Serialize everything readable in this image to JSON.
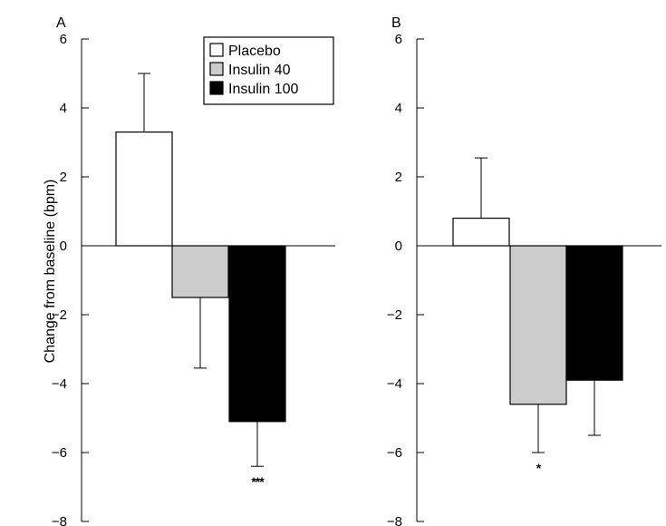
{
  "chart_data": [
    {
      "type": "bar",
      "panel_label": "A",
      "ylabel": "Change from baseline (bpm)",
      "ylim": [
        -8,
        6
      ],
      "yticks": [
        "6",
        "4",
        "2",
        "0",
        "−2",
        "−4",
        "−6",
        "−8"
      ],
      "yticks_values": [
        6,
        4,
        2,
        0,
        -2,
        -4,
        -6,
        -8
      ],
      "series": [
        {
          "name": "Placebo",
          "value": 3.3,
          "error": 1.7,
          "color": "#ffffff",
          "significance": ""
        },
        {
          "name": "Insulin 40",
          "value": -1.5,
          "error": 2.05,
          "color": "#cccccc",
          "significance": ""
        },
        {
          "name": "Insulin 100",
          "value": -5.1,
          "error": 1.3,
          "color": "#000000",
          "significance": "***"
        }
      ],
      "legend": {
        "position": "top-right"
      }
    },
    {
      "type": "bar",
      "panel_label": "B",
      "ylim": [
        -8,
        6
      ],
      "yticks": [
        "6",
        "4",
        "2",
        "0",
        "−2",
        "−4",
        "−6",
        "−8"
      ],
      "yticks_values": [
        6,
        4,
        2,
        0,
        -2,
        -4,
        -6,
        -8
      ],
      "series": [
        {
          "name": "Placebo",
          "value": 0.8,
          "error": 1.75,
          "color": "#ffffff",
          "significance": ""
        },
        {
          "name": "Insulin 40",
          "value": -4.6,
          "error": 1.4,
          "color": "#cccccc",
          "significance": "*"
        },
        {
          "name": "Insulin 100",
          "value": -3.9,
          "error": 1.6,
          "color": "#000000",
          "significance": ""
        }
      ]
    }
  ]
}
